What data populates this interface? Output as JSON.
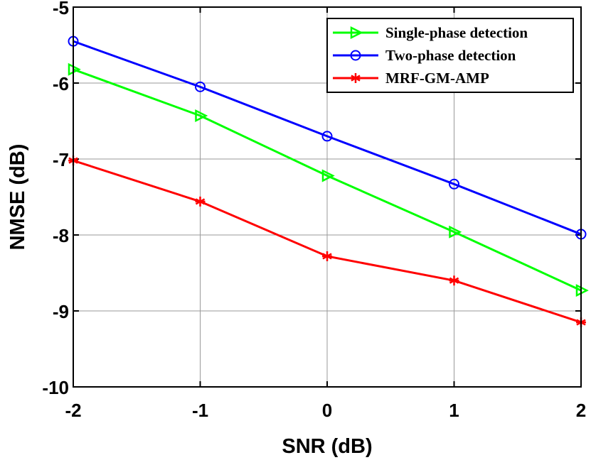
{
  "chart_data": {
    "type": "line",
    "xlabel": "SNR (dB)",
    "ylabel": "NMSE (dB)",
    "x": [
      -2,
      -1,
      0,
      1,
      2
    ],
    "xlim": [
      -2,
      2
    ],
    "ylim": [
      -10,
      -5
    ],
    "xticks": [
      "-2",
      "-1",
      "0",
      "1",
      "2"
    ],
    "yticks": [
      "-5",
      "-6",
      "-7",
      "-8",
      "-9",
      "-10"
    ],
    "grid": true,
    "legend_position": "top-right",
    "series": [
      {
        "name": "Single-phase detection",
        "color": "#00ff00",
        "marker": "triangle-right",
        "values": [
          -5.82,
          -6.43,
          -7.22,
          -7.96,
          -8.73
        ]
      },
      {
        "name": "Two-phase detection",
        "color": "#0000ff",
        "marker": "circle",
        "values": [
          -5.45,
          -6.05,
          -6.7,
          -7.33,
          -7.99
        ]
      },
      {
        "name": "MRF-GM-AMP",
        "color": "#ff0000",
        "marker": "asterisk",
        "values": [
          -7.02,
          -7.56,
          -8.28,
          -8.6,
          -9.15
        ]
      }
    ]
  }
}
